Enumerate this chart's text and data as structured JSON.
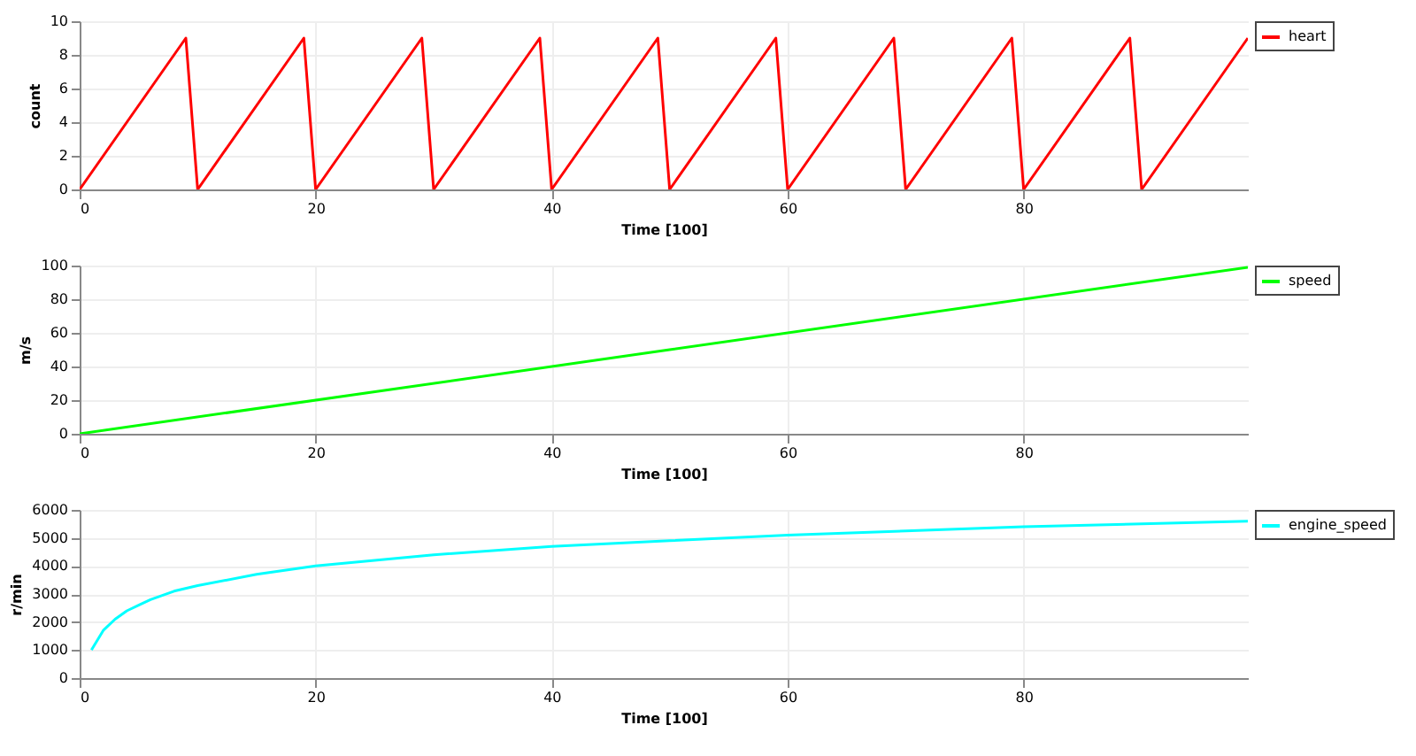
{
  "chart_data": [
    {
      "type": "line",
      "xlabel": "Time [100]",
      "ylabel": "count",
      "xlim": [
        0,
        99
      ],
      "xticks": [
        0,
        20,
        40,
        60,
        80
      ],
      "ylim": [
        0,
        10
      ],
      "yticks": [
        0,
        2,
        4,
        6,
        8,
        10
      ],
      "grid": true,
      "legend": "top right",
      "x": [
        0,
        9,
        10,
        19,
        20,
        29,
        30,
        39,
        40,
        49,
        50,
        59,
        60,
        69,
        70,
        79,
        80,
        89,
        90,
        99
      ],
      "series": [
        {
          "name": "heart",
          "color": "#ff0000",
          "values": [
            0,
            9,
            0,
            9,
            0,
            9,
            0,
            9,
            0,
            9,
            0,
            9,
            0,
            9,
            0,
            9,
            0,
            9,
            0,
            9
          ]
        }
      ]
    },
    {
      "type": "line",
      "xlabel": "Time [100]",
      "ylabel": "m/s",
      "xlim": [
        0,
        99
      ],
      "xticks": [
        0,
        20,
        40,
        60,
        80
      ],
      "ylim": [
        0,
        100
      ],
      "yticks": [
        0,
        20,
        40,
        60,
        80,
        100
      ],
      "grid": true,
      "legend": "top right",
      "x": [
        0,
        50,
        99
      ],
      "series": [
        {
          "name": "speed",
          "color": "#00ff00",
          "values": [
            0,
            50,
            99
          ]
        }
      ]
    },
    {
      "type": "line",
      "xlabel": "Time [100]",
      "ylabel": "r/min",
      "xlim": [
        0,
        99
      ],
      "xticks": [
        0,
        20,
        40,
        60,
        80
      ],
      "ylim": [
        0,
        6000
      ],
      "yticks": [
        0,
        1000,
        2000,
        3000,
        4000,
        5000,
        6000
      ],
      "grid": true,
      "legend": "top right",
      "x": [
        1,
        2,
        3,
        4,
        5,
        6,
        8,
        10,
        15,
        20,
        30,
        40,
        50,
        60,
        70,
        80,
        90,
        99
      ],
      "series": [
        {
          "name": "engine_speed",
          "color": "#00ffff",
          "values": [
            1000,
            1700,
            2100,
            2400,
            2600,
            2800,
            3100,
            3300,
            3700,
            4000,
            4400,
            4700,
            4900,
            5100,
            5250,
            5400,
            5500,
            5600
          ]
        }
      ]
    }
  ]
}
